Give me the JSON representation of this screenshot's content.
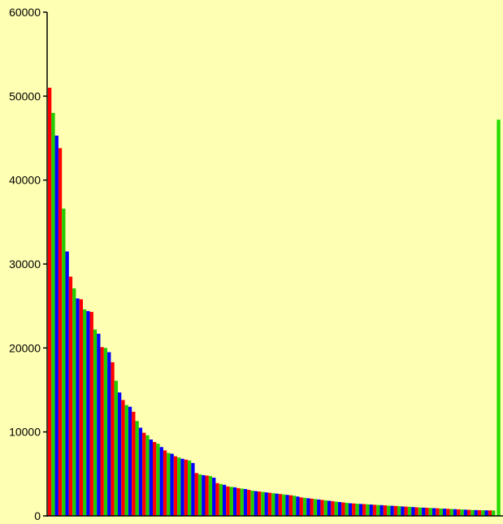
{
  "chart_data": {
    "type": "bar",
    "title": "",
    "xlabel": "",
    "ylabel": "",
    "ylim": [
      0,
      60000
    ],
    "yticks": [
      0,
      10000,
      20000,
      30000,
      40000,
      50000,
      60000
    ],
    "ytick_labels": [
      "0",
      "10000",
      "20000",
      "30000",
      "40000",
      "50000",
      "60000"
    ],
    "grid": false,
    "legend": "none",
    "bar_colors": [
      "#ff0000",
      "#22cc00",
      "#0000ff"
    ],
    "values": [
      51000,
      48000,
      45300,
      43800,
      36600,
      31500,
      28500,
      27100,
      25900,
      25800,
      24600,
      24400,
      24300,
      22200,
      21700,
      20100,
      20000,
      19500,
      18300,
      16100,
      14700,
      13800,
      13200,
      13000,
      12400,
      11300,
      10500,
      9900,
      9600,
      9100,
      8800,
      8600,
      8200,
      7800,
      7500,
      7400,
      7100,
      6950,
      6800,
      6700,
      6600,
      6300,
      5100,
      4950,
      4850,
      4800,
      4750,
      4550,
      3900,
      3800,
      3700,
      3500,
      3450,
      3400,
      3300,
      3250,
      3200,
      3100,
      3000,
      2950,
      2900,
      2850,
      2800,
      2750,
      2700,
      2650,
      2600,
      2550,
      2500,
      2450,
      2400,
      2300,
      2200,
      2150,
      2100,
      2050,
      2000,
      1950,
      1900,
      1850,
      1800,
      1750,
      1700,
      1650,
      1600,
      1550,
      1500,
      1480,
      1450,
      1420,
      1400,
      1380,
      1350,
      1320,
      1300,
      1280,
      1250,
      1220,
      1200,
      1180,
      1150,
      1120,
      1100,
      1080,
      1050,
      1020,
      1000,
      980,
      960,
      940,
      920,
      900,
      880,
      860,
      840,
      820,
      800,
      780,
      760,
      740,
      720,
      700,
      690,
      680,
      670,
      660,
      650,
      640
    ],
    "highlight": {
      "index": 128,
      "value": 47200,
      "color": "#22dd00"
    }
  }
}
